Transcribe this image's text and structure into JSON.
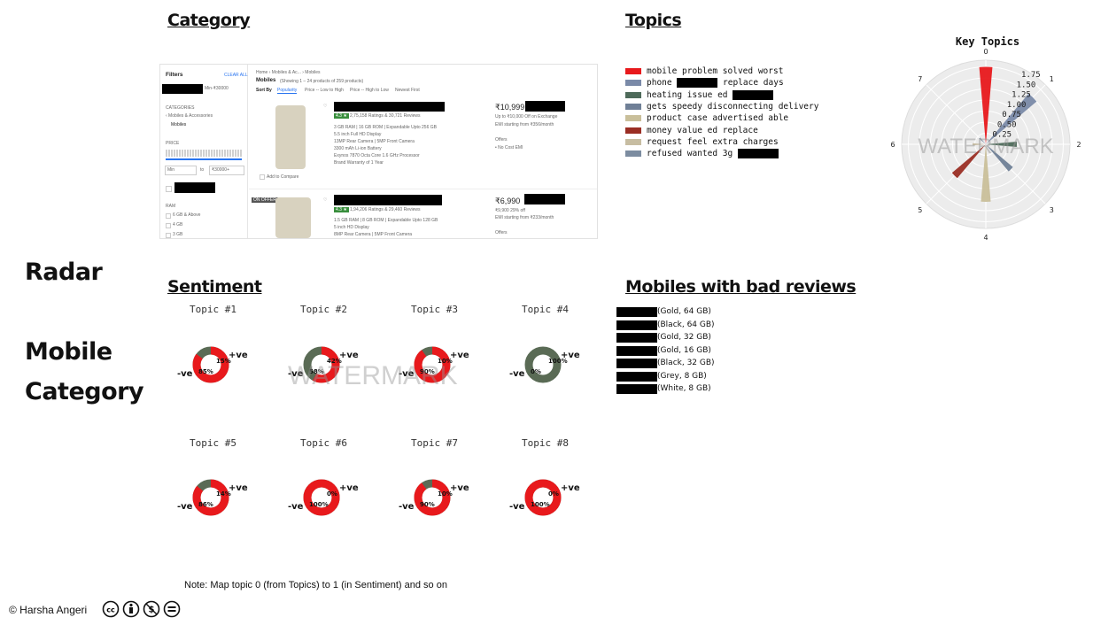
{
  "sections": {
    "category_title": "Category",
    "topics_title": "Topics",
    "sentiment_title": "Sentiment",
    "bad_reviews_title": "Mobiles with bad reviews"
  },
  "side_labels": {
    "radar": "Radar",
    "mobile": "Mobile",
    "category": "Category"
  },
  "category_screenshot": {
    "filters_title": "Filters",
    "clear_all": "CLEAR ALL",
    "filter_chip": "Min-₹30000",
    "categories_label": "CATEGORIES",
    "cat_parent": "‹ Mobiles & Accessories",
    "cat_child": "Mobiles",
    "price_label": "PRICE",
    "price_min": "Min",
    "price_to": "to",
    "price_max": "₹30000+",
    "ram_label": "RAM",
    "ram_options": [
      "6 GB & Above",
      "4 GB",
      "3 GB"
    ],
    "breadcrumb": "Home › Mobiles & Ac... › Mobiles",
    "results_title": "Mobiles",
    "results_count": "(Showing 1 – 24 products of 259 products)",
    "sort_by": "Sort By",
    "sort_options": [
      "Popularity",
      "Price -- Low to High",
      "Price -- High to Low",
      "Newest First"
    ],
    "products": [
      {
        "rating": "4.3 ★",
        "ratings_reviews": "2,75,158 Ratings & 30,721 Reviews",
        "specs": [
          "3 GB RAM | 16 GB ROM | Expandable Upto 256 GB",
          "5.5 inch Full HD Display",
          "13MP Rear Camera | 5MP Front Camera",
          "3300 mAh Li-ion Battery",
          "Exynos 7870 Octa Core 1.6 GHz Processor",
          "Brand Warranty of 1 Year"
        ],
        "price": "₹10,999",
        "offer": "Up to ₹10,000 Off on Exchange",
        "emi": "EMI starting from ₹356/month",
        "offers_label": "Offers",
        "offer_item": "• No Cost EMI",
        "compare": "Add to Compare"
      },
      {
        "badge": "ON OFFER",
        "rating": "4.3 ★",
        "ratings_reviews": "1,94,206 Ratings & 29,460 Reviews",
        "specs": [
          "1.5 GB RAM | 8 GB ROM | Expandable Upto 128 GB",
          "5 inch HD Display",
          "8MP Rear Camera | 5MP Front Camera"
        ],
        "price": "₹6,990",
        "offer": "₹9,900  29% off",
        "emi": "EMI starting from ₹233/month",
        "offers_label": "Offers"
      }
    ]
  },
  "topics_legend": [
    {
      "text": "mobile problem solved worst",
      "color": "#e8191c",
      "redacted": false
    },
    {
      "text": "phone",
      "after": "replace days",
      "color": "#7a8aa8",
      "redacted": true
    },
    {
      "text": "heating issue ed",
      "color": "#4e6a5a",
      "redacted": true
    },
    {
      "text": "gets speedy disconnecting delivery",
      "color": "#6f7f96",
      "redacted": false
    },
    {
      "text": "product case advertised able",
      "color": "#c9bf9a",
      "redacted": false
    },
    {
      "text": "money value ed replace",
      "color": "#9a2e24",
      "redacted": false
    },
    {
      "text": "request feel extra charges",
      "color": "#c7bda2",
      "redacted": false
    },
    {
      "text": "refused wanted 3g",
      "color": "#7c8ca0",
      "redacted": true
    }
  ],
  "radar": {
    "title": "Key Topics",
    "angle_labels": [
      "0",
      "1",
      "2",
      "3",
      "4",
      "5",
      "6",
      "7"
    ],
    "radial_ticks": [
      "0.25",
      "0.50",
      "0.75",
      "1.00",
      "1.25",
      "1.50",
      "1.75"
    ],
    "values": [
      1.75,
      1.5,
      0.7,
      0.8,
      1.3,
      1.0,
      0.3,
      0.2
    ],
    "colors": [
      "#e8191c",
      "#7a8aa8",
      "#4e6a5a",
      "#6f7f96",
      "#c9bf9a",
      "#9a2e24",
      "#c7bda2",
      "#7c8ca0"
    ],
    "watermark": "WATERMARK"
  },
  "sentiment": {
    "watermark": "WATERMARK",
    "topics": [
      {
        "label": "Topic #1",
        "neg_pct": "85%",
        "pos_pct": "15%",
        "neg": "-ve",
        "pos": "+ve",
        "neg_frac": 0.85
      },
      {
        "label": "Topic #2",
        "neg_pct": "58%",
        "pos_pct": "42%",
        "neg": "-ve",
        "pos": "+ve",
        "neg_frac": 0.58
      },
      {
        "label": "Topic #3",
        "neg_pct": "90%",
        "pos_pct": "10%",
        "neg": "-ve",
        "pos": "+ve",
        "neg_frac": 0.9
      },
      {
        "label": "Topic #4",
        "neg_pct": "0%",
        "pos_pct": "100%",
        "neg": "-ve",
        "pos": "+ve",
        "neg_frac": 0.0
      },
      {
        "label": "Topic #5",
        "neg_pct": "86%",
        "pos_pct": "14%",
        "neg": "-ve",
        "pos": "+ve",
        "neg_frac": 0.86
      },
      {
        "label": "Topic #6",
        "neg_pct": "100%",
        "pos_pct": "0%",
        "neg": "-ve",
        "pos": "+ve",
        "neg_frac": 1.0
      },
      {
        "label": "Topic #7",
        "neg_pct": "90%",
        "pos_pct": "10%",
        "neg": "-ve",
        "pos": "+ve",
        "neg_frac": 0.9
      },
      {
        "label": "Topic #8",
        "neg_pct": "100%",
        "pos_pct": "0%",
        "neg": "-ve",
        "pos": "+ve",
        "neg_frac": 1.0
      }
    ],
    "neg_color": "#e8191c",
    "pos_color": "#5a6b55"
  },
  "bad_reviews": [
    "(Gold, 64 GB)",
    "(Black, 64 GB)",
    "(Gold, 32 GB)",
    "(Gold, 16 GB)",
    "(Black, 32 GB)",
    "(Grey, 8 GB)",
    "(White, 8 GB)"
  ],
  "note": "Note: Map topic 0 (from Topics) to 1 (in Sentiment) and so on",
  "footer": {
    "copyright": "© Harsha Angeri",
    "license_icons": [
      "cc-icon",
      "by-icon",
      "nc-icon",
      "nd-icon"
    ]
  }
}
